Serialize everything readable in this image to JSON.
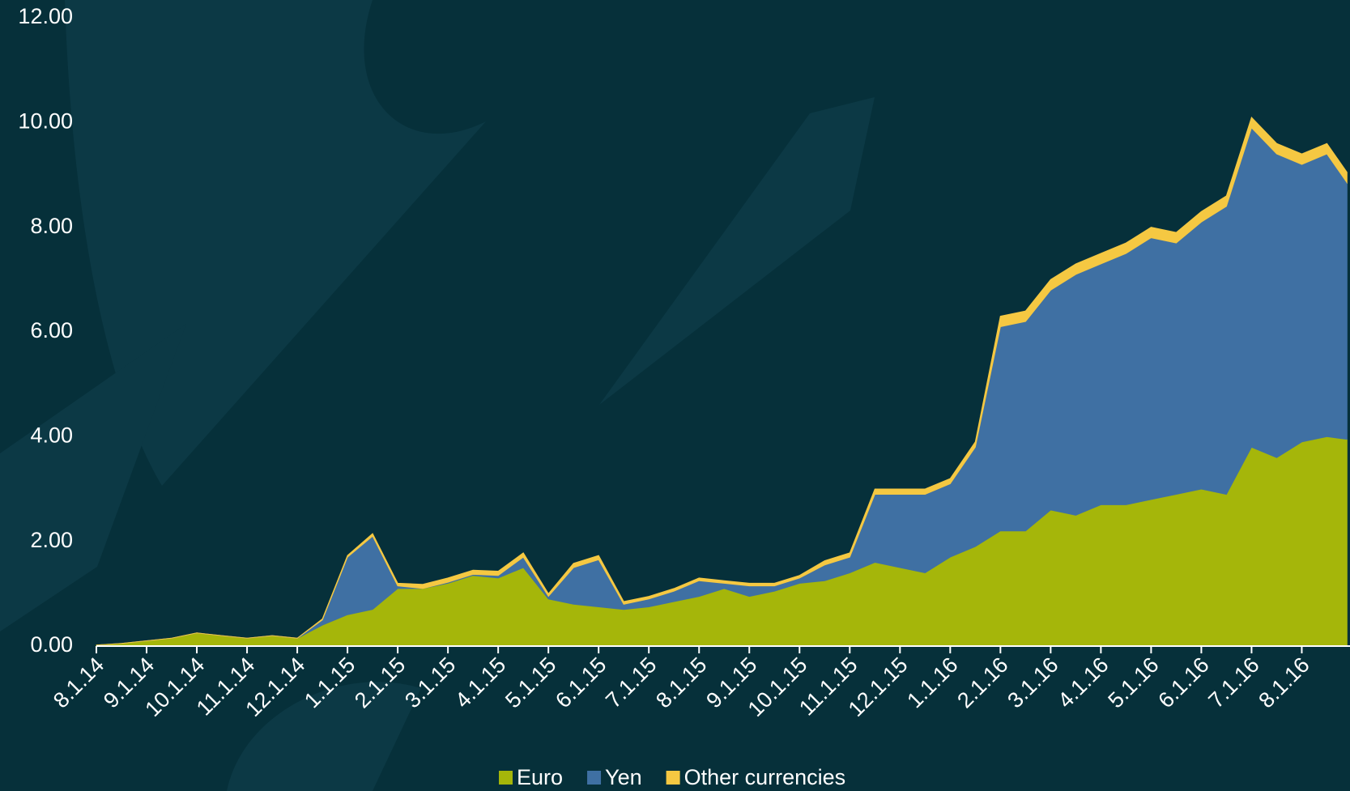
{
  "chart_data": {
    "type": "stacked-area",
    "x": [
      0,
      0.5,
      1,
      1.5,
      2,
      2.5,
      3,
      3.5,
      4,
      4.5,
      5,
      5.5,
      6,
      6.5,
      7,
      7.5,
      8,
      8.5,
      9,
      9.5,
      10,
      10.5,
      11,
      11.5,
      12,
      12.5,
      13,
      13.5,
      14,
      14.5,
      15,
      15.5,
      16,
      16.5,
      17,
      17.5,
      18,
      18.5,
      19,
      19.5,
      20,
      20.5,
      21,
      21.5,
      22,
      22.5,
      23,
      23.5,
      24,
      24.5,
      24.9
    ],
    "series": [
      {
        "name": "Euro",
        "color": "#a5b60a",
        "values": [
          0.02,
          0.05,
          0.1,
          0.15,
          0.25,
          0.2,
          0.15,
          0.2,
          0.15,
          0.4,
          0.6,
          0.7,
          1.1,
          1.1,
          1.2,
          1.35,
          1.3,
          1.5,
          0.9,
          0.8,
          0.75,
          0.7,
          0.75,
          0.85,
          0.95,
          1.1,
          0.95,
          1.05,
          1.2,
          1.25,
          1.4,
          1.6,
          1.5,
          1.4,
          1.7,
          1.9,
          2.2,
          2.2,
          2.6,
          2.5,
          2.7,
          2.7,
          2.8,
          2.9,
          3.0,
          2.9,
          3.8,
          3.6,
          3.9,
          4.0,
          3.95
        ]
      },
      {
        "name": "Yen",
        "color": "#3f70a3",
        "values": [
          0,
          0,
          0,
          0,
          0,
          0,
          0,
          0,
          0,
          0.1,
          1.1,
          1.4,
          0.05,
          0,
          0.02,
          0.02,
          0.05,
          0.2,
          0.05,
          0.7,
          0.9,
          0.1,
          0.15,
          0.2,
          0.3,
          0.1,
          0.2,
          0.1,
          0.1,
          0.3,
          0.3,
          1.3,
          1.4,
          1.5,
          1.4,
          1.9,
          3.9,
          4.0,
          4.2,
          4.6,
          4.6,
          4.8,
          5.0,
          4.8,
          5.1,
          5.5,
          6.1,
          5.8,
          5.3,
          5.4,
          4.9
        ]
      },
      {
        "name": "Other currencies",
        "color": "#f5c842",
        "values": [
          0,
          0,
          0,
          0,
          0,
          0,
          0,
          0,
          0,
          0.02,
          0.03,
          0.05,
          0.05,
          0.08,
          0.08,
          0.08,
          0.08,
          0.08,
          0.05,
          0.08,
          0.08,
          0.05,
          0.05,
          0.05,
          0.05,
          0.05,
          0.05,
          0.05,
          0.05,
          0.08,
          0.08,
          0.1,
          0.1,
          0.1,
          0.1,
          0.1,
          0.2,
          0.2,
          0.2,
          0.2,
          0.2,
          0.2,
          0.2,
          0.2,
          0.2,
          0.2,
          0.2,
          0.2,
          0.2,
          0.2,
          0.2
        ]
      }
    ],
    "xlim": [
      0,
      24.96
    ],
    "xticks": [
      {
        "value": 0,
        "label": "8.1.14"
      },
      {
        "value": 1,
        "label": "9.1.14"
      },
      {
        "value": 2,
        "label": "10.1.14"
      },
      {
        "value": 3,
        "label": "11.1.14"
      },
      {
        "value": 4,
        "label": "12.1.14"
      },
      {
        "value": 5,
        "label": "1.1.15"
      },
      {
        "value": 6,
        "label": "2.1.15"
      },
      {
        "value": 7,
        "label": "3.1.15"
      },
      {
        "value": 8,
        "label": "4.1.15"
      },
      {
        "value": 9,
        "label": "5.1.15"
      },
      {
        "value": 10,
        "label": "6.1.15"
      },
      {
        "value": 11,
        "label": "7.1.15"
      },
      {
        "value": 12,
        "label": "8.1.15"
      },
      {
        "value": 13,
        "label": "9.1.15"
      },
      {
        "value": 14,
        "label": "10.1.15"
      },
      {
        "value": 15,
        "label": "11.1.15"
      },
      {
        "value": 16,
        "label": "12.1.15"
      },
      {
        "value": 17,
        "label": "1.1.16"
      },
      {
        "value": 18,
        "label": "2.1.16"
      },
      {
        "value": 19,
        "label": "3.1.16"
      },
      {
        "value": 20,
        "label": "4.1.16"
      },
      {
        "value": 21,
        "label": "5.1.16"
      },
      {
        "value": 22,
        "label": "6.1.16"
      },
      {
        "value": 23,
        "label": "7.1.16"
      },
      {
        "value": 24,
        "label": "8.1.16"
      }
    ],
    "ylim": [
      0,
      12
    ],
    "yticks": [
      {
        "value": 0,
        "label": "0.00"
      },
      {
        "value": 2,
        "label": "2.00"
      },
      {
        "value": 4,
        "label": "4.00"
      },
      {
        "value": 6,
        "label": "6.00"
      },
      {
        "value": 8,
        "label": "8.00"
      },
      {
        "value": 10,
        "label": "10.00"
      },
      {
        "value": 12,
        "label": "12.00"
      }
    ],
    "legend": "bottom"
  }
}
